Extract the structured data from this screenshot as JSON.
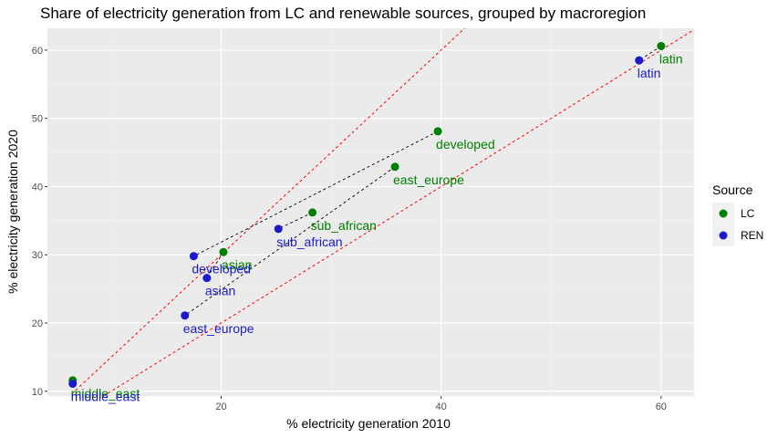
{
  "chart_data": {
    "type": "scatter",
    "title": "Share of electricity generation from LC and renewable sources, grouped by macroregion",
    "xlabel": "% electricity generation 2010",
    "ylabel": "% electricity generation 2020",
    "xlim": [
      4.2,
      63.0
    ],
    "ylim": [
      9.3,
      63.2
    ],
    "x_ticks": [
      20,
      40,
      60
    ],
    "y_ticks": [
      10,
      20,
      30,
      40,
      50,
      60
    ],
    "grid": true,
    "legend": {
      "title": "Source",
      "position": "right",
      "entries": [
        {
          "label": "LC",
          "color": "#008000"
        },
        {
          "label": "REN",
          "color": "#1a1acc"
        }
      ]
    },
    "series": [
      {
        "name": "LC",
        "color": "#008000",
        "points": [
          {
            "label": "latin",
            "x": 60.0,
            "y": 60.6
          },
          {
            "label": "developed",
            "x": 39.7,
            "y": 48.1
          },
          {
            "label": "east_europe",
            "x": 35.8,
            "y": 42.9
          },
          {
            "label": "sub_african",
            "x": 28.3,
            "y": 36.2
          },
          {
            "label": "asian",
            "x": 20.2,
            "y": 30.4
          },
          {
            "label": "middle_east",
            "x": 6.5,
            "y": 11.6
          }
        ]
      },
      {
        "name": "REN",
        "color": "#1a1acc",
        "points": [
          {
            "label": "latin",
            "x": 58.0,
            "y": 58.5
          },
          {
            "label": "developed",
            "x": 17.5,
            "y": 29.8
          },
          {
            "label": "east_europe",
            "x": 16.7,
            "y": 21.1
          },
          {
            "label": "sub_african",
            "x": 25.2,
            "y": 33.8
          },
          {
            "label": "asian",
            "x": 18.7,
            "y": 26.6
          },
          {
            "label": "middle_east",
            "x": 6.5,
            "y": 11.1
          }
        ]
      }
    ],
    "reference_lines": [
      {
        "type": "dashed",
        "color": "#ff0000",
        "slope": 1.0,
        "intercept": 0
      },
      {
        "type": "dashed",
        "color": "#ff0000",
        "slope": 1.5,
        "intercept": 0
      }
    ],
    "connector_lines": {
      "type": "dashed",
      "color": "#000000",
      "connects": "same region LC to REN"
    }
  }
}
